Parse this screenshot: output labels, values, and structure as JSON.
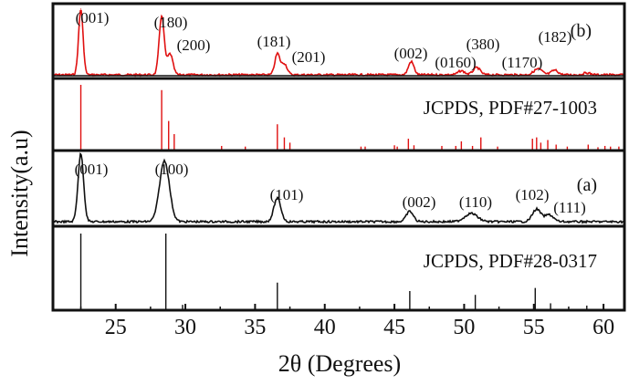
{
  "chart_data": {
    "type": "line",
    "ylabel": "Intensity(a.u)",
    "xlabel": "2θ (Degrees)",
    "xlim": [
      20.5,
      61.5
    ],
    "x_ticks": [
      25,
      30,
      35,
      40,
      45,
      50,
      55,
      60
    ],
    "x_tick_labels": [
      "25",
      "30",
      "35",
      "40",
      "45",
      "50",
      "55",
      "60"
    ],
    "grid": false,
    "panels": [
      {
        "label": "(b)",
        "color": "#e01010",
        "type": "line",
        "peaks": [
          {
            "x": 22.5,
            "height": 1.0,
            "width": 0.16,
            "label": "(001)"
          },
          {
            "x": 28.3,
            "height": 0.9,
            "width": 0.18,
            "label": "(180)"
          },
          {
            "x": 28.9,
            "height": 0.32,
            "width": 0.2,
            "label": "(200)"
          },
          {
            "x": 36.6,
            "height": 0.32,
            "width": 0.18,
            "label": "(181)"
          },
          {
            "x": 37.1,
            "height": 0.17,
            "width": 0.2,
            "label": "(201)"
          },
          {
            "x": 46.2,
            "height": 0.2,
            "width": 0.2,
            "label": "(002)"
          },
          {
            "x": 49.8,
            "height": 0.06,
            "width": 0.25,
            "label": "(0160)"
          },
          {
            "x": 50.9,
            "height": 0.11,
            "width": 0.25,
            "label": "(380)"
          },
          {
            "x": 55.3,
            "height": 0.09,
            "width": 0.3,
            "label": "(1170)"
          },
          {
            "x": 56.5,
            "height": 0.07,
            "width": 0.25,
            "label": "(182)"
          },
          {
            "x": 58.8,
            "height": 0.03,
            "width": 0.25,
            "label": ""
          }
        ]
      },
      {
        "label": "JCPDS, PDF#27-1003",
        "color": "#e01010",
        "type": "stick",
        "sticks": [
          {
            "x": 22.5,
            "h": 1.0
          },
          {
            "x": 28.3,
            "h": 0.92
          },
          {
            "x": 28.8,
            "h": 0.45
          },
          {
            "x": 29.2,
            "h": 0.25
          },
          {
            "x": 32.6,
            "h": 0.07
          },
          {
            "x": 34.3,
            "h": 0.06
          },
          {
            "x": 36.6,
            "h": 0.4
          },
          {
            "x": 37.1,
            "h": 0.2
          },
          {
            "x": 37.5,
            "h": 0.12
          },
          {
            "x": 42.6,
            "h": 0.06
          },
          {
            "x": 42.9,
            "h": 0.06
          },
          {
            "x": 45.0,
            "h": 0.08
          },
          {
            "x": 45.2,
            "h": 0.06
          },
          {
            "x": 46.0,
            "h": 0.18
          },
          {
            "x": 46.4,
            "h": 0.08
          },
          {
            "x": 48.4,
            "h": 0.07
          },
          {
            "x": 49.4,
            "h": 0.07
          },
          {
            "x": 49.8,
            "h": 0.14
          },
          {
            "x": 50.6,
            "h": 0.07
          },
          {
            "x": 51.2,
            "h": 0.2
          },
          {
            "x": 52.4,
            "h": 0.06
          },
          {
            "x": 54.9,
            "h": 0.18
          },
          {
            "x": 55.2,
            "h": 0.2
          },
          {
            "x": 55.5,
            "h": 0.12
          },
          {
            "x": 56.0,
            "h": 0.16
          },
          {
            "x": 56.6,
            "h": 0.09
          },
          {
            "x": 57.4,
            "h": 0.06
          },
          {
            "x": 58.9,
            "h": 0.09
          },
          {
            "x": 59.6,
            "h": 0.05
          },
          {
            "x": 60.1,
            "h": 0.07
          },
          {
            "x": 60.5,
            "h": 0.06
          },
          {
            "x": 61.1,
            "h": 0.06
          }
        ]
      },
      {
        "label": "(a)",
        "color": "#111111",
        "type": "line",
        "peaks": [
          {
            "x": 22.5,
            "height": 0.98,
            "width": 0.2,
            "label": "(001)"
          },
          {
            "x": 28.5,
            "height": 0.88,
            "width": 0.35,
            "label": "(100)"
          },
          {
            "x": 36.6,
            "height": 0.34,
            "width": 0.25,
            "label": "(101)"
          },
          {
            "x": 46.1,
            "height": 0.15,
            "width": 0.25,
            "label": "(002)"
          },
          {
            "x": 50.5,
            "height": 0.12,
            "width": 0.45,
            "label": "(110)"
          },
          {
            "x": 55.2,
            "height": 0.18,
            "width": 0.3,
            "label": "(102)"
          },
          {
            "x": 56.1,
            "height": 0.1,
            "width": 0.3,
            "label": "(111)"
          }
        ]
      },
      {
        "label": "JCPDS, PDF#28-0317",
        "color": "#111111",
        "type": "stick",
        "sticks": [
          {
            "x": 22.5,
            "h": 1.0
          },
          {
            "x": 25.0,
            "h": 0.07
          },
          {
            "x": 28.6,
            "h": 1.0
          },
          {
            "x": 29.8,
            "h": 0.07
          },
          {
            "x": 35.0,
            "h": 0.06
          },
          {
            "x": 36.6,
            "h": 0.36
          },
          {
            "x": 40.0,
            "h": 0.07
          },
          {
            "x": 45.0,
            "h": 0.06
          },
          {
            "x": 46.1,
            "h": 0.25
          },
          {
            "x": 50.0,
            "h": 0.07
          },
          {
            "x": 50.8,
            "h": 0.2
          },
          {
            "x": 55.1,
            "h": 0.29
          },
          {
            "x": 56.2,
            "h": 0.09
          },
          {
            "x": 58.8,
            "h": 0.06
          },
          {
            "x": 60.0,
            "h": 0.07
          }
        ]
      }
    ]
  }
}
